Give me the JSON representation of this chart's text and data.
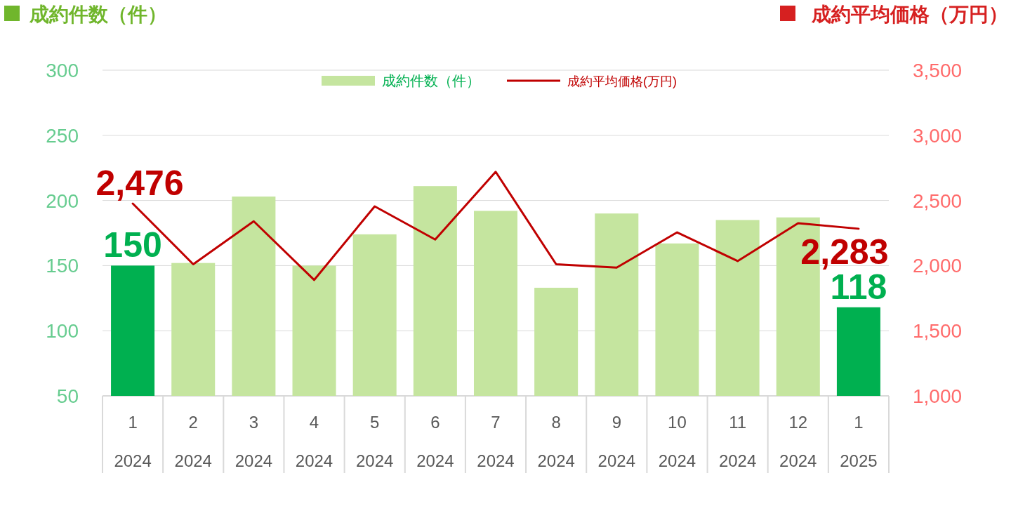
{
  "chart_data": {
    "type": "bar",
    "categories": [
      "1\n2024",
      "2\n2024",
      "3\n2024",
      "4\n2024",
      "5\n2024",
      "6\n2024",
      "7\n2024",
      "8\n2024",
      "9\n2024",
      "10\n2024",
      "11\n2024",
      "12\n2024",
      "1\n2025"
    ],
    "ylabel": "成約件数（件）",
    "y2label": "成約平均価格（万円）",
    "ylim": [
      50,
      300
    ],
    "yticks": [
      50,
      100,
      150,
      200,
      250,
      300
    ],
    "y2lim": [
      1000,
      3500
    ],
    "y2ticks": [
      {
        "value": 1000,
        "label": "1,000"
      },
      {
        "value": 1500,
        "label": "1,500"
      },
      {
        "value": 2000,
        "label": "2,000"
      },
      {
        "value": 2500,
        "label": "2,500"
      },
      {
        "value": 3000,
        "label": "3,000"
      },
      {
        "value": 3500,
        "label": "3,500"
      }
    ],
    "grid": "y",
    "legend": "top",
    "marker": "none",
    "line_style": "solid",
    "series": [
      {
        "name": "成約件数（件）",
        "axis": "y",
        "colors": [
          "#00b050",
          "#c5e59f",
          "#c5e59f",
          "#c5e59f",
          "#c5e59f",
          "#c5e59f",
          "#c5e59f",
          "#c5e59f",
          "#c5e59f",
          "#c5e59f",
          "#c5e59f",
          "#c5e59f",
          "#00b050"
        ],
        "values": [
          150,
          152,
          203,
          150,
          174,
          211,
          192,
          133,
          190,
          167,
          185,
          187,
          118
        ],
        "value_labels": [
          "150",
          null,
          null,
          null,
          null,
          null,
          null,
          null,
          null,
          null,
          null,
          null,
          "118"
        ]
      },
      {
        "name": "成約平均価格(万円)",
        "type": "line",
        "axis": "y2",
        "color": "#c00000",
        "values": [
          2476,
          2010,
          2340,
          1890,
          2455,
          2200,
          2720,
          2010,
          1985,
          2255,
          2035,
          2325,
          2283
        ],
        "value_labels": [
          "2,476",
          null,
          null,
          null,
          null,
          null,
          null,
          null,
          null,
          null,
          null,
          null,
          "2,283"
        ]
      }
    ]
  }
}
